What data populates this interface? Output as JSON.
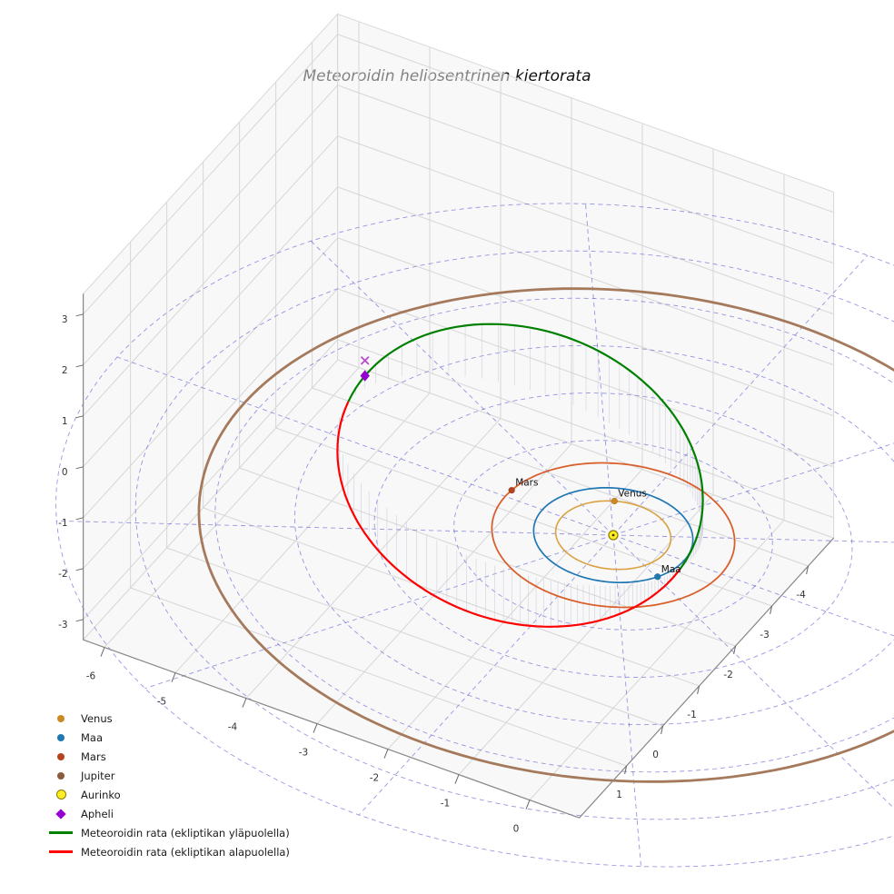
{
  "chart_data": {
    "type": "3d-orbit-plot",
    "title": "Meteoroidin heliosentrinen kiertorata",
    "view": {
      "elev_deg": 30,
      "azim_deg": -60
    },
    "axes": {
      "x_ticks": [
        -6,
        -5,
        -4,
        -3,
        -2,
        -1,
        0
      ],
      "y_ticks": [
        -4,
        -3,
        -2,
        -1,
        0,
        1
      ],
      "z_ticks": [
        3,
        2,
        1,
        0,
        -1,
        -2,
        -3
      ],
      "x_range": [
        -6.3,
        0.7
      ],
      "y_range": [
        -4.7,
        2.3
      ],
      "z_range": [
        -3.4,
        3.4
      ]
    },
    "ecliptic_grid": {
      "circle_radii_au": [
        1,
        2,
        3,
        4,
        5,
        6,
        7
      ],
      "spoke_step_deg": 30,
      "color": "#4444cc",
      "style": "dashed"
    },
    "planets": [
      {
        "name": "Venus",
        "orbit_radius_au": 0.723,
        "orbit_color": "#d9a141",
        "orbit_width": 1.6,
        "marker_color": "#cc8822",
        "marker_longitude_deg": 244,
        "label": "Venus"
      },
      {
        "name": "Maa",
        "orbit_radius_au": 1.0,
        "orbit_color": "#1f77b4",
        "orbit_width": 1.7,
        "marker_color": "#1f77b4",
        "marker_longitude_deg": 29,
        "label": "Maa"
      },
      {
        "name": "Mars",
        "orbit_radius_au": 1.524,
        "orbit_color": "#d95f2b",
        "orbit_width": 1.8,
        "marker_color": "#b3441e",
        "marker_longitude_deg": 186,
        "label": "Mars"
      },
      {
        "name": "Jupiter",
        "orbit_radius_au": 5.203,
        "orbit_color": "#a5795b",
        "orbit_width": 2.8,
        "marker_color": "#8a5c3c",
        "marker_longitude_deg": 320,
        "label": ""
      }
    ],
    "sun": {
      "label": "Aurinko",
      "color": "#ffee22",
      "edge_color": "#8a7a00"
    },
    "meteoroid_orbit": {
      "a_au": 2.63,
      "e": 0.6,
      "incl_deg": 35,
      "node_deg": 190,
      "arg_peri_deg": 186,
      "above_color": "#008000",
      "below_color": "#ff0000",
      "above_label": "Meteoroidin rata (ekliptikan yläpuolella)",
      "below_label": "Meteoroidin rata (ekliptikan alapuolella)"
    },
    "aphelion": {
      "label": "Apheli",
      "marker": "diamond",
      "color": "#9400d3"
    },
    "meteoroid_marker": {
      "marker": "x",
      "color": "#bb44cc",
      "z_offset_au": 0.3
    }
  },
  "legend": {
    "items": [
      {
        "label": "Venus",
        "marker": "dot",
        "color": "#cc8822"
      },
      {
        "label": "Maa",
        "marker": "dot",
        "color": "#1f77b4"
      },
      {
        "label": "Mars",
        "marker": "dot",
        "color": "#b3441e"
      },
      {
        "label": "Jupiter",
        "marker": "dot",
        "color": "#8a5c3c"
      },
      {
        "label": "Aurinko",
        "marker": "dot-large",
        "color": "#ffee22",
        "edge_color": "#8a7a00"
      },
      {
        "label": "Apheli",
        "marker": "diamond",
        "color": "#9400d3"
      },
      {
        "label": "Meteoroidin rata (ekliptikan yläpuolella)",
        "marker": "line",
        "color": "#008000"
      },
      {
        "label": "Meteoroidin rata (ekliptikan alapuolella)",
        "marker": "line",
        "color": "#ff0000"
      }
    ]
  }
}
